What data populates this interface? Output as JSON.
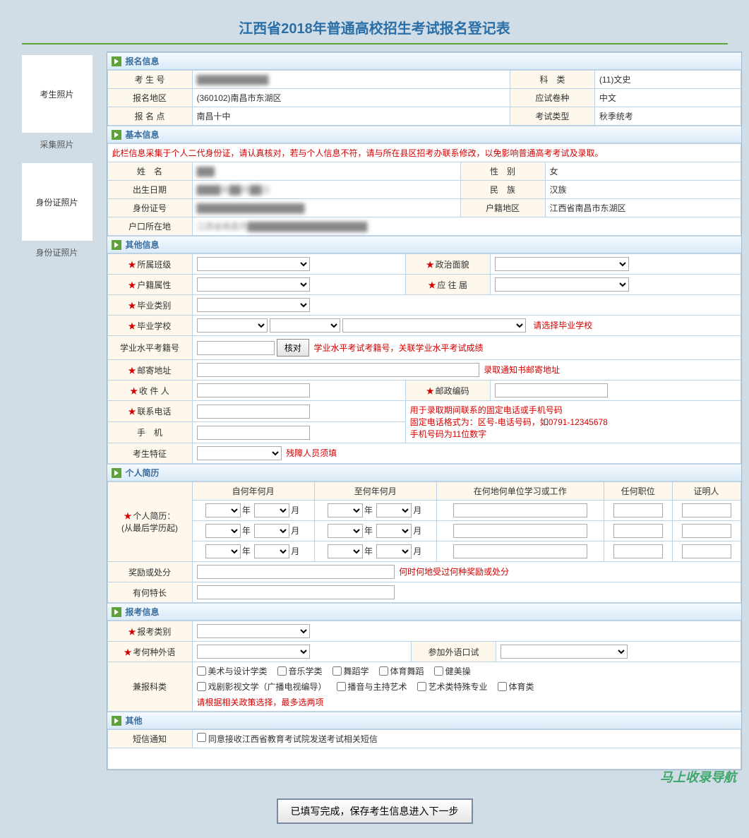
{
  "page": {
    "title": "江西省2018年普通高校招生考试报名登记表",
    "submit_button": "已填写完成，保存考生信息进入下一步",
    "watermark": "马上收录导航"
  },
  "sidebar": {
    "photo1_label": "考生照片",
    "photo1_caption": "采集照片",
    "photo2_label": "身份证照片",
    "photo2_caption": "身份证照片"
  },
  "colors": {
    "header_text": "#2a6fa8",
    "section_arrow": "#5fa23a",
    "label_bg": "#fdf7ec",
    "border": "#bcd3e6",
    "required": "#d40000",
    "page_bg": "#d0dde6"
  },
  "sections": {
    "reg": {
      "title": "报名信息",
      "rows": {
        "exam_no_label": "考 生 号",
        "exam_no_value": "████████████",
        "subject_label": "科　类",
        "subject_value": "(11)文史",
        "area_label": "报名地区",
        "area_value": "(360102)南昌市东湖区",
        "paper_label": "应试卷种",
        "paper_value": "中文",
        "site_label": "报 名 点",
        "site_value": "南昌十中",
        "exam_type_label": "考试类型",
        "exam_type_value": "秋季统考"
      }
    },
    "basic": {
      "title": "基本信息",
      "warning": "此栏信息采集于个人二代身份证，请认真核对，若与个人信息不符，请与所在县区招考办联系修改，以免影响普通高考考试及录取。",
      "rows": {
        "name_label": "姓　名",
        "name_value": "███",
        "gender_label": "性　别",
        "gender_value": "女",
        "birth_label": "出生日期",
        "birth_value": "████年██月██日",
        "nation_label": "民　族",
        "nation_value": "汉族",
        "idcard_label": "身份证号",
        "idcard_value": "██████████████████",
        "hukou_area_label": "户籍地区",
        "hukou_area_value": "江西省南昌市东湖区",
        "hukou_addr_label": "户口所在地",
        "hukou_addr_value": "江西省南昌市████████████████████"
      }
    },
    "other": {
      "title": "其他信息",
      "rows": {
        "class_label": "所属班级",
        "political_label": "政治面貌",
        "hukou_type_label": "户籍属性",
        "fresh_label": "应 往 届",
        "grad_type_label": "毕业类别",
        "grad_school_label": "毕业学校",
        "grad_school_note": "请选择毕业学校",
        "academic_no_label": "学业水平考籍号",
        "verify_button": "核对",
        "academic_no_note": "学业水平考试考籍号，关联学业水平考试成绩",
        "mail_addr_label": "邮寄地址",
        "mail_addr_note": "录取通知书邮寄地址",
        "recipient_label": "收 件 人",
        "postcode_label": "邮政编码",
        "phone_label": "联系电话",
        "phone_note_1": "用于录取期间联系的固定电话或手机号码",
        "phone_note_2": "固定电话格式为：区号-电话号码，如0791-12345678",
        "phone_note_3": "手机号码为11位数字",
        "mobile_label": "手　机",
        "feature_label": "考生特征",
        "feature_note": "残障人员须填"
      }
    },
    "resume": {
      "title": "个人简历",
      "header": {
        "from": "自何年何月",
        "to": "至何年何月",
        "where": "在何地何单位学习或工作",
        "duty": "任何职位",
        "witness": "证明人"
      },
      "side_label_1": "个人简历：",
      "side_label_2": "(从最后学历起)",
      "year": "年",
      "month": "月",
      "award_label": "奖励或处分",
      "award_note": "何时何地受过何种奖励或处分",
      "specialty_label": "有何特长"
    },
    "apply": {
      "title": "报考信息",
      "category_label": "报考类别",
      "lang_label": "考何种外语",
      "oral_label": "参加外语口试",
      "extra_label": "兼报科类",
      "checkboxes_row1": [
        "美术与设计学类",
        "音乐学类",
        "舞蹈学",
        "体育舞蹈",
        "健美操"
      ],
      "checkboxes_row2": [
        "戏剧影视文学（广播电视编导）",
        "播音与主持艺术",
        "艺术类特殊专业",
        "体育类"
      ],
      "policy_note": "请根据相关政策选择，最多选两项"
    },
    "misc": {
      "title": "其他",
      "sms_label": "短信通知",
      "sms_checkbox": "同意接收江西省教育考试院发送考试相关短信"
    }
  }
}
